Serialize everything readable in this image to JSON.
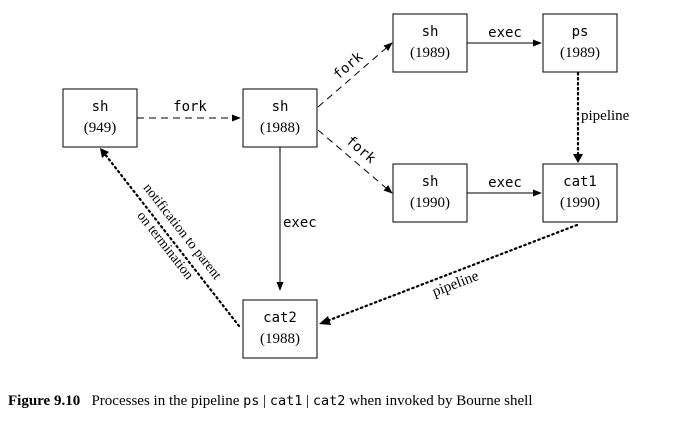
{
  "nodes": {
    "sh949": {
      "name": "sh",
      "pid": "(949)"
    },
    "sh1988": {
      "name": "sh",
      "pid": "(1988)"
    },
    "sh1989": {
      "name": "sh",
      "pid": "(1989)"
    },
    "ps1989": {
      "name": "ps",
      "pid": "(1989)"
    },
    "sh1990": {
      "name": "sh",
      "pid": "(1990)"
    },
    "cat1": {
      "name": "cat1",
      "pid": "(1990)"
    },
    "cat2": {
      "name": "cat2",
      "pid": "(1988)"
    }
  },
  "edges": {
    "fork_main": "fork",
    "fork_up": "fork",
    "fork_down": "fork",
    "exec_1989": "exec",
    "exec_1990": "exec",
    "exec_1988": "exec",
    "pipeline_ps_cat1": "pipeline",
    "pipeline_cat1_cat2": "pipeline",
    "notify_line1": "notification to parent",
    "notify_line2": "on termination"
  },
  "caption": {
    "figure": "Figure 9.10",
    "text_before": "Processes in the pipeline",
    "cmd1": "ps",
    "sep1": "|",
    "cmd2": "cat1",
    "sep2": "|",
    "cmd3": "cat2",
    "text_after": "when invoked by Bourne shell"
  }
}
